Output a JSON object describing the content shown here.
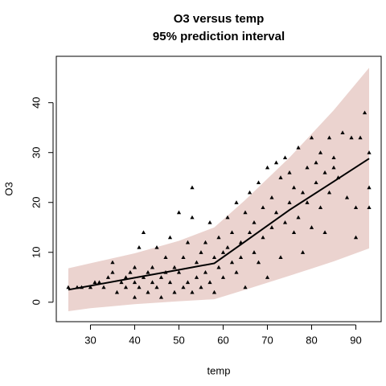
{
  "chart_data": {
    "type": "scatter",
    "title": "O3 versus temp",
    "subtitle": "95% prediction interval",
    "x_label": "temp",
    "y_label": "O3",
    "xlim": [
      22.28,
      95.72
    ],
    "ylim": [
      -3.9,
      49.3
    ],
    "xticks": [
      30,
      40,
      50,
      60,
      70,
      80,
      90
    ],
    "yticks": [
      0,
      10,
      20,
      30,
      40
    ],
    "points": {
      "color": "#000000",
      "x": [
        25,
        27,
        28,
        30,
        31,
        32,
        33,
        34,
        35,
        35,
        36,
        37,
        38,
        38,
        39,
        40,
        40,
        40,
        41,
        41,
        42,
        42,
        43,
        43,
        44,
        44,
        45,
        45,
        46,
        46,
        47,
        47,
        48,
        48,
        49,
        49,
        50,
        50,
        51,
        51,
        52,
        52,
        53,
        53,
        53,
        54,
        54,
        55,
        55,
        56,
        56,
        57,
        57,
        58,
        58,
        59,
        59,
        60,
        60,
        61,
        61,
        62,
        62,
        63,
        63,
        64,
        64,
        65,
        65,
        66,
        66,
        67,
        67,
        68,
        68,
        69,
        69,
        70,
        70,
        71,
        71,
        72,
        72,
        73,
        73,
        74,
        74,
        75,
        75,
        76,
        76,
        77,
        77,
        78,
        78,
        79,
        79,
        80,
        80,
        81,
        81,
        82,
        82,
        83,
        83,
        84,
        84,
        85,
        85,
        86,
        87,
        88,
        89,
        90,
        90,
        91,
        92,
        93,
        93,
        93
      ],
      "values": [
        3,
        3,
        3,
        3,
        4,
        4,
        3,
        5,
        6,
        8,
        2,
        4,
        3,
        5,
        6,
        1,
        4,
        7,
        11,
        3,
        5,
        14,
        6,
        2,
        4,
        7,
        3,
        11,
        5,
        1,
        6,
        9,
        13,
        4,
        7,
        2,
        18,
        6,
        3,
        9,
        4,
        12,
        23,
        2,
        17,
        5,
        8,
        3,
        10,
        6,
        12,
        4,
        16,
        9,
        2,
        13,
        7,
        10,
        5,
        11,
        17,
        8,
        14,
        6,
        20,
        12,
        9,
        18,
        3,
        22,
        14,
        10,
        16,
        24,
        8,
        19,
        13,
        27,
        5,
        15,
        21,
        28,
        18,
        25,
        9,
        16,
        29,
        20,
        26,
        14,
        23,
        31,
        17,
        22,
        10,
        27,
        20,
        33,
        15,
        24,
        28,
        30,
        19,
        26,
        14,
        33,
        22,
        29,
        27,
        25,
        34,
        21,
        33,
        13,
        19,
        33,
        38,
        30,
        23,
        19
      ]
    },
    "fit": {
      "color": "#000000",
      "x": [
        25,
        30,
        40,
        50,
        58,
        65,
        75,
        85,
        93
      ],
      "values": [
        2.5,
        3.3,
        4.9,
        6.5,
        7.8,
        12.2,
        18.5,
        24.2,
        28.8
      ]
    },
    "band": {
      "color": "#ebd3cf",
      "x": [
        25,
        30,
        40,
        50,
        58,
        65,
        75,
        85,
        93
      ],
      "lower": [
        -1.8,
        -1.2,
        -0.4,
        0.2,
        0.6,
        2.5,
        5.3,
        8.2,
        10.8
      ],
      "upper": [
        6.8,
        7.8,
        9.8,
        12.3,
        15,
        20.5,
        29,
        38.5,
        47
      ]
    }
  }
}
